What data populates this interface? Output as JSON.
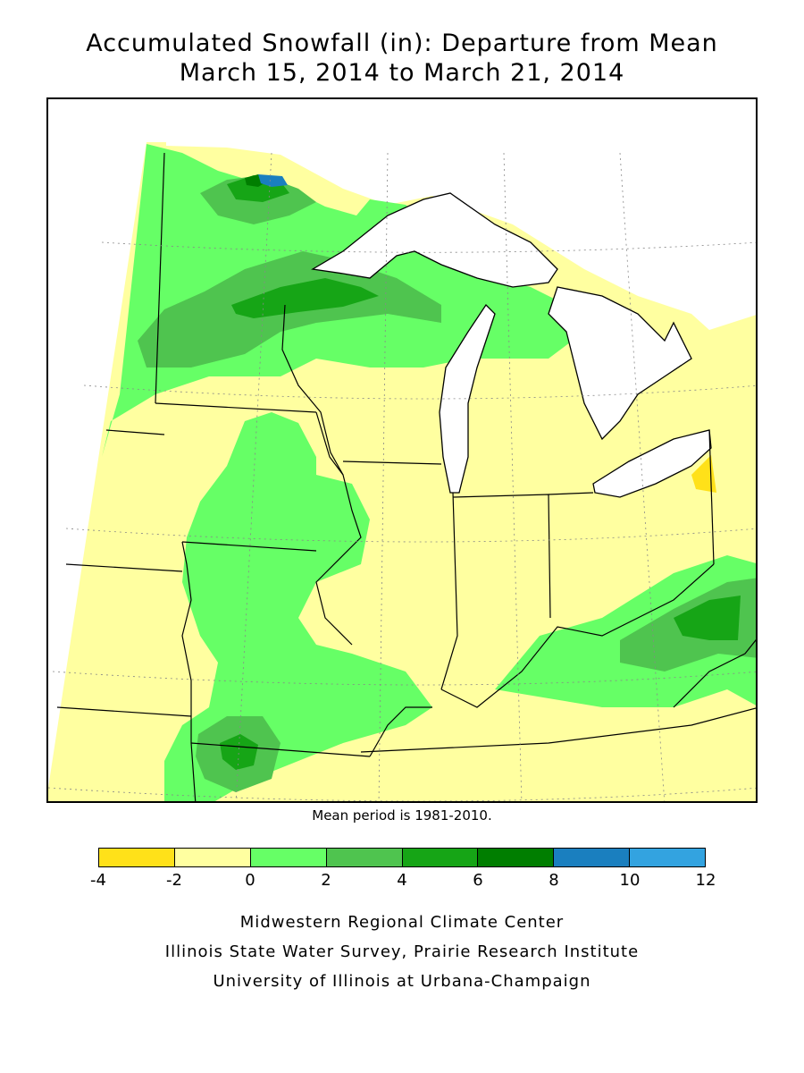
{
  "title": {
    "line1": "Accumulated Snowfall (in): Departure from Mean",
    "line2": "March 15, 2014 to March 21, 2014"
  },
  "map": {
    "region": "Midwest United States",
    "note": "Mean period is 1981-2010.",
    "colors": {
      "water": "#ffffff",
      "outline": "#000000",
      "grid": "#777777"
    }
  },
  "legend": {
    "ticks": [
      "-4",
      "-2",
      "0",
      "2",
      "4",
      "6",
      "8",
      "10",
      "12"
    ],
    "bins": [
      {
        "min": -4,
        "max": -2,
        "color": "#ffe119"
      },
      {
        "min": -2,
        "max": 0,
        "color": "#ffffa0"
      },
      {
        "min": 0,
        "max": 2,
        "color": "#66ff66"
      },
      {
        "min": 2,
        "max": 4,
        "color": "#4fc44f"
      },
      {
        "min": 4,
        "max": 6,
        "color": "#16a516"
      },
      {
        "min": 6,
        "max": 8,
        "color": "#007e00"
      },
      {
        "min": 8,
        "max": 10,
        "color": "#1a7fbf"
      },
      {
        "min": 10,
        "max": 12,
        "color": "#33a3e0"
      }
    ]
  },
  "credits": [
    "Midwestern Regional Climate Center",
    "Illinois State Water Survey, Prairie Research Institute",
    "University of Illinois at Urbana-Champaign"
  ]
}
